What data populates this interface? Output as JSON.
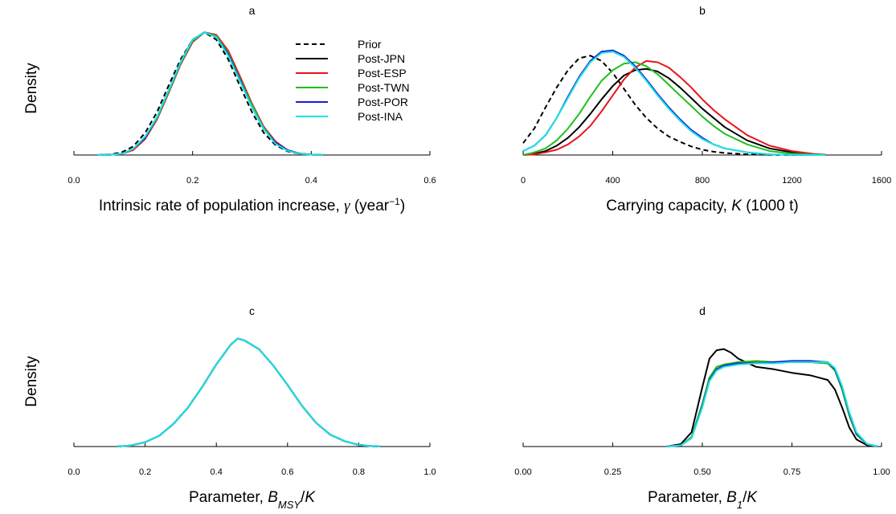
{
  "figure": {
    "ylabel": "Density"
  },
  "legend": [
    {
      "name": "Prior",
      "color": "#000000",
      "dash": true
    },
    {
      "name": "Post-JPN",
      "color": "#000000"
    },
    {
      "name": "Post-ESP",
      "color": "#e8141b"
    },
    {
      "name": "Post-TWN",
      "color": "#1fbf1f"
    },
    {
      "name": "Post-POR",
      "color": "#1a1ad9"
    },
    {
      "name": "Post-INA",
      "color": "#19e3e3"
    }
  ],
  "chart_data": [
    {
      "id": "a",
      "type": "line",
      "title": "a",
      "xlabel_parts": [
        "Intrinsic rate of population increase, ",
        "γ",
        " (year",
        "−1",
        ")"
      ],
      "xlim": [
        0,
        0.6
      ],
      "xticks": [
        0,
        0.2,
        0.4,
        0.6
      ],
      "xtick_labels": [
        "0.0",
        "0.2",
        "0.4",
        "0.6"
      ],
      "ylim": [
        0,
        1.08
      ],
      "x": [
        0.04,
        0.06,
        0.08,
        0.1,
        0.12,
        0.14,
        0.16,
        0.18,
        0.2,
        0.22,
        0.24,
        0.26,
        0.28,
        0.3,
        0.32,
        0.34,
        0.36,
        0.38,
        0.4,
        0.42
      ],
      "series": [
        {
          "name": "Prior",
          "values": [
            0.0,
            0.004,
            0.02,
            0.07,
            0.18,
            0.35,
            0.57,
            0.78,
            0.94,
            1.0,
            0.94,
            0.78,
            0.56,
            0.35,
            0.18,
            0.08,
            0.03,
            0.01,
            0.003,
            0.0
          ]
        },
        {
          "name": "Post-JPN",
          "values": [
            0.0,
            0.002,
            0.01,
            0.05,
            0.14,
            0.3,
            0.52,
            0.75,
            0.93,
            1.0,
            0.97,
            0.83,
            0.62,
            0.4,
            0.22,
            0.1,
            0.04,
            0.012,
            0.003,
            0.0
          ]
        },
        {
          "name": "Post-ESP",
          "values": [
            0.0,
            0.002,
            0.01,
            0.04,
            0.13,
            0.29,
            0.51,
            0.74,
            0.92,
            1.0,
            0.98,
            0.85,
            0.64,
            0.42,
            0.23,
            0.11,
            0.04,
            0.012,
            0.003,
            0.0
          ]
        },
        {
          "name": "Post-TWN",
          "values": [
            0.0,
            0.002,
            0.01,
            0.05,
            0.14,
            0.3,
            0.52,
            0.75,
            0.93,
            1.0,
            0.97,
            0.83,
            0.62,
            0.41,
            0.22,
            0.1,
            0.04,
            0.012,
            0.003,
            0.0
          ]
        },
        {
          "name": "Post-POR",
          "values": [
            0.0,
            0.002,
            0.01,
            0.05,
            0.14,
            0.31,
            0.53,
            0.76,
            0.94,
            1.0,
            0.96,
            0.82,
            0.61,
            0.39,
            0.21,
            0.1,
            0.04,
            0.011,
            0.003,
            0.0
          ]
        },
        {
          "name": "Post-INA",
          "values": [
            0.0,
            0.002,
            0.01,
            0.05,
            0.15,
            0.31,
            0.53,
            0.76,
            0.94,
            1.0,
            0.96,
            0.81,
            0.6,
            0.39,
            0.21,
            0.09,
            0.035,
            0.01,
            0.003,
            0.0
          ]
        }
      ]
    },
    {
      "id": "b",
      "type": "line",
      "title": "b",
      "xlabel_parts": [
        "Carrying capacity, ",
        "K",
        " (1000 t)"
      ],
      "xlim": [
        0,
        1600
      ],
      "xticks": [
        0,
        400,
        800,
        1200,
        1600
      ],
      "xtick_labels": [
        "0",
        "400",
        "800",
        "1200",
        "1600"
      ],
      "ylim": [
        0,
        1.0
      ],
      "x": [
        0,
        50,
        100,
        150,
        200,
        250,
        300,
        350,
        400,
        450,
        500,
        550,
        600,
        650,
        700,
        750,
        800,
        850,
        900,
        1000,
        1100,
        1200,
        1300,
        1350
      ],
      "series": [
        {
          "name": "Prior",
          "values": [
            0.09,
            0.2,
            0.36,
            0.51,
            0.64,
            0.73,
            0.75,
            0.71,
            0.62,
            0.5,
            0.38,
            0.28,
            0.2,
            0.14,
            0.1,
            0.065,
            0.04,
            0.025,
            0.015,
            0.005,
            0.001,
            0.0,
            0.0,
            0.0
          ]
        },
        {
          "name": "Post-JPN",
          "values": [
            0.0,
            0.01,
            0.03,
            0.07,
            0.13,
            0.21,
            0.31,
            0.42,
            0.52,
            0.6,
            0.64,
            0.65,
            0.63,
            0.58,
            0.51,
            0.43,
            0.35,
            0.28,
            0.21,
            0.11,
            0.05,
            0.02,
            0.005,
            0.002
          ]
        },
        {
          "name": "Post-ESP",
          "values": [
            0.0,
            0.005,
            0.02,
            0.04,
            0.08,
            0.14,
            0.22,
            0.33,
            0.45,
            0.57,
            0.66,
            0.71,
            0.7,
            0.66,
            0.59,
            0.51,
            0.42,
            0.34,
            0.27,
            0.15,
            0.07,
            0.03,
            0.008,
            0.003
          ]
        },
        {
          "name": "Post-TWN",
          "values": [
            0.0,
            0.02,
            0.05,
            0.11,
            0.2,
            0.31,
            0.44,
            0.56,
            0.64,
            0.69,
            0.7,
            0.67,
            0.61,
            0.53,
            0.45,
            0.37,
            0.29,
            0.22,
            0.16,
            0.08,
            0.03,
            0.01,
            0.003,
            0.001
          ]
        },
        {
          "name": "Post-POR",
          "values": [
            0.03,
            0.07,
            0.15,
            0.28,
            0.44,
            0.59,
            0.71,
            0.78,
            0.79,
            0.75,
            0.67,
            0.57,
            0.46,
            0.36,
            0.27,
            0.19,
            0.13,
            0.08,
            0.05,
            0.02,
            0.005,
            0.001,
            0.0,
            0.0
          ]
        },
        {
          "name": "Post-INA",
          "values": [
            0.03,
            0.07,
            0.15,
            0.28,
            0.43,
            0.58,
            0.7,
            0.77,
            0.78,
            0.74,
            0.66,
            0.56,
            0.45,
            0.35,
            0.26,
            0.18,
            0.12,
            0.08,
            0.05,
            0.02,
            0.005,
            0.001,
            0.0,
            0.0
          ]
        }
      ]
    },
    {
      "id": "c",
      "type": "line",
      "title": "c",
      "xlabel_parts": [
        "Parameter, ",
        "B",
        "MSY",
        "/",
        "K"
      ],
      "xlim": [
        0,
        1
      ],
      "xticks": [
        0,
        0.2,
        0.4,
        0.6,
        0.8,
        1.0
      ],
      "xtick_labels": [
        "0.0",
        "0.2",
        "0.4",
        "0.6",
        "0.8",
        "1.0"
      ],
      "ylim": [
        0,
        1.1
      ],
      "x": [
        0.12,
        0.16,
        0.2,
        0.24,
        0.28,
        0.32,
        0.36,
        0.4,
        0.44,
        0.46,
        0.48,
        0.52,
        0.56,
        0.6,
        0.64,
        0.68,
        0.72,
        0.76,
        0.8,
        0.84,
        0.86
      ],
      "series": [
        {
          "name": "Prior",
          "values": [
            0.0,
            0.01,
            0.04,
            0.1,
            0.21,
            0.36,
            0.55,
            0.76,
            0.94,
            1.0,
            0.98,
            0.9,
            0.75,
            0.57,
            0.38,
            0.22,
            0.11,
            0.05,
            0.015,
            0.003,
            0.0
          ]
        },
        {
          "name": "Post-JPN",
          "values": [
            0.0,
            0.01,
            0.04,
            0.1,
            0.21,
            0.36,
            0.55,
            0.76,
            0.94,
            1.0,
            0.98,
            0.9,
            0.75,
            0.57,
            0.38,
            0.22,
            0.11,
            0.05,
            0.015,
            0.003,
            0.0
          ]
        },
        {
          "name": "Post-ESP",
          "values": [
            0.0,
            0.01,
            0.04,
            0.1,
            0.21,
            0.36,
            0.55,
            0.76,
            0.94,
            1.0,
            0.98,
            0.9,
            0.75,
            0.57,
            0.38,
            0.22,
            0.11,
            0.05,
            0.015,
            0.003,
            0.0
          ]
        },
        {
          "name": "Post-TWN",
          "values": [
            0.0,
            0.01,
            0.04,
            0.1,
            0.21,
            0.36,
            0.55,
            0.76,
            0.94,
            1.0,
            0.98,
            0.9,
            0.75,
            0.57,
            0.38,
            0.22,
            0.11,
            0.05,
            0.015,
            0.003,
            0.0
          ]
        },
        {
          "name": "Post-POR",
          "values": [
            0.0,
            0.01,
            0.04,
            0.1,
            0.21,
            0.36,
            0.55,
            0.76,
            0.94,
            1.0,
            0.98,
            0.9,
            0.75,
            0.57,
            0.38,
            0.22,
            0.11,
            0.05,
            0.015,
            0.003,
            0.0
          ]
        },
        {
          "name": "Post-INA",
          "values": [
            0.0,
            0.01,
            0.04,
            0.1,
            0.21,
            0.36,
            0.55,
            0.76,
            0.94,
            1.0,
            0.98,
            0.9,
            0.75,
            0.57,
            0.38,
            0.22,
            0.11,
            0.05,
            0.015,
            0.003,
            0.0
          ]
        }
      ]
    },
    {
      "id": "d",
      "type": "line",
      "title": "d",
      "xlabel_parts": [
        "Parameter, ",
        "B",
        "1",
        "/",
        "K"
      ],
      "xlim": [
        0,
        1
      ],
      "xticks": [
        0,
        0.25,
        0.5,
        0.75,
        1.0
      ],
      "xtick_labels": [
        "0.00",
        "0.25",
        "0.50",
        "0.75",
        "1.00"
      ],
      "ylim": [
        0,
        1.0
      ],
      "x": [
        0.4,
        0.44,
        0.47,
        0.5,
        0.52,
        0.54,
        0.56,
        0.58,
        0.6,
        0.65,
        0.7,
        0.75,
        0.8,
        0.85,
        0.87,
        0.89,
        0.91,
        0.93,
        0.96,
        0.99
      ],
      "series": [
        {
          "name": "Post-JPN",
          "values": [
            0.0,
            0.02,
            0.12,
            0.5,
            0.74,
            0.81,
            0.82,
            0.79,
            0.74,
            0.67,
            0.65,
            0.62,
            0.6,
            0.56,
            0.48,
            0.33,
            0.16,
            0.06,
            0.01,
            0.0
          ]
        },
        {
          "name": "Post-ESP",
          "values": [
            0.0,
            0.01,
            0.08,
            0.36,
            0.58,
            0.67,
            0.69,
            0.7,
            0.71,
            0.71,
            0.71,
            0.71,
            0.71,
            0.7,
            0.64,
            0.48,
            0.26,
            0.1,
            0.02,
            0.0
          ]
        },
        {
          "name": "Post-TWN",
          "values": [
            0.0,
            0.01,
            0.08,
            0.36,
            0.58,
            0.67,
            0.69,
            0.7,
            0.71,
            0.72,
            0.71,
            0.71,
            0.71,
            0.7,
            0.64,
            0.48,
            0.26,
            0.1,
            0.02,
            0.0
          ]
        },
        {
          "name": "Post-POR",
          "values": [
            0.0,
            0.01,
            0.07,
            0.34,
            0.56,
            0.65,
            0.68,
            0.69,
            0.7,
            0.7,
            0.71,
            0.72,
            0.72,
            0.71,
            0.65,
            0.5,
            0.28,
            0.11,
            0.02,
            0.0
          ]
        },
        {
          "name": "Post-INA",
          "values": [
            0.0,
            0.01,
            0.07,
            0.33,
            0.55,
            0.64,
            0.67,
            0.68,
            0.69,
            0.7,
            0.7,
            0.71,
            0.71,
            0.71,
            0.66,
            0.51,
            0.29,
            0.12,
            0.02,
            0.0
          ]
        }
      ]
    }
  ]
}
